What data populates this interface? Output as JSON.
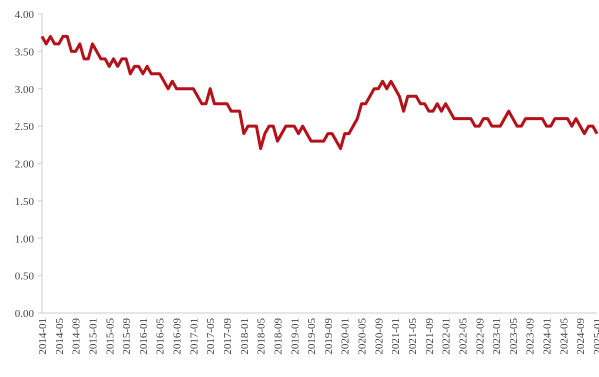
{
  "chart_data": {
    "type": "line",
    "color": "#b3121b",
    "categories": [
      "2014-01",
      null,
      null,
      null,
      "2014-05",
      null,
      null,
      null,
      "2014-09",
      null,
      null,
      null,
      "2015-01",
      null,
      null,
      null,
      "2015-05",
      null,
      null,
      null,
      "2015-09",
      null,
      null,
      null,
      "2016-01",
      null,
      null,
      null,
      "2016-05",
      null,
      null,
      null,
      "2016-09",
      null,
      null,
      null,
      "2017-01",
      null,
      null,
      null,
      "2017-05",
      null,
      null,
      null,
      "2017-09",
      null,
      null,
      null,
      "2018-01",
      null,
      null,
      null,
      "2018-05",
      null,
      null,
      null,
      "2018-09",
      null,
      null,
      null,
      "2019-01",
      null,
      null,
      null,
      "2019-05",
      null,
      null,
      null,
      "2019-09",
      null,
      null,
      null,
      "2020-01",
      null,
      null,
      null,
      "2020-05",
      null,
      null,
      null,
      "2020-09",
      null,
      null,
      null,
      "2021-01",
      null,
      null,
      null,
      "2021-05",
      null,
      null,
      null,
      "2021-09",
      null,
      null,
      null,
      "2022-01",
      null,
      null,
      null,
      "2022-05",
      null,
      null,
      null,
      "2022-09",
      null,
      null,
      null,
      "2023-01",
      null,
      null,
      null,
      "2023-05",
      null,
      null,
      null,
      "2023-09",
      null,
      null,
      null,
      "2024-01",
      null,
      null,
      null,
      "2024-05",
      null,
      null,
      null,
      "2024-09",
      null,
      null,
      null,
      "2025-01"
    ],
    "values": [
      3.7,
      3.6,
      3.7,
      3.6,
      3.6,
      3.7,
      3.7,
      3.5,
      3.5,
      3.6,
      3.4,
      3.4,
      3.6,
      3.5,
      3.4,
      3.4,
      3.3,
      3.4,
      3.3,
      3.4,
      3.4,
      3.2,
      3.3,
      3.3,
      3.2,
      3.3,
      3.2,
      3.2,
      3.2,
      3.1,
      3.0,
      3.1,
      3.0,
      3.0,
      3.0,
      3.0,
      3.0,
      2.9,
      2.8,
      2.8,
      3.0,
      2.8,
      2.8,
      2.8,
      2.8,
      2.7,
      2.7,
      2.7,
      2.4,
      2.5,
      2.5,
      2.5,
      2.2,
      2.4,
      2.5,
      2.5,
      2.3,
      2.4,
      2.5,
      2.5,
      2.5,
      2.4,
      2.5,
      2.4,
      2.3,
      2.3,
      2.3,
      2.3,
      2.4,
      2.4,
      2.3,
      2.2,
      2.4,
      2.4,
      2.5,
      2.6,
      2.8,
      2.8,
      2.9,
      3.0,
      3.0,
      3.1,
      3.0,
      3.1,
      3.0,
      2.9,
      2.7,
      2.9,
      2.9,
      2.9,
      2.8,
      2.8,
      2.7,
      2.7,
      2.8,
      2.7,
      2.8,
      2.7,
      2.6,
      2.6,
      2.6,
      2.6,
      2.6,
      2.5,
      2.5,
      2.6,
      2.6,
      2.5,
      2.5,
      2.5,
      2.6,
      2.7,
      2.6,
      2.5,
      2.5,
      2.6,
      2.6,
      2.6,
      2.6,
      2.6,
      2.5,
      2.5,
      2.6,
      2.6,
      2.6,
      2.6,
      2.5,
      2.6,
      2.5,
      2.4,
      2.5,
      2.5,
      2.4
    ],
    "ylim": [
      0,
      4
    ],
    "yticks": [
      {
        "value": 0,
        "label": "0.00"
      },
      {
        "value": 0.5,
        "label": "0.50"
      },
      {
        "value": 1,
        "label": "1.00"
      },
      {
        "value": 1.5,
        "label": "1.50"
      },
      {
        "value": 2,
        "label": "2.00"
      },
      {
        "value": 2.5,
        "label": "2.50"
      },
      {
        "value": 3,
        "label": "3.00"
      },
      {
        "value": 3.5,
        "label": "3.50"
      },
      {
        "value": 4,
        "label": "4.00"
      }
    ],
    "grid": false
  }
}
